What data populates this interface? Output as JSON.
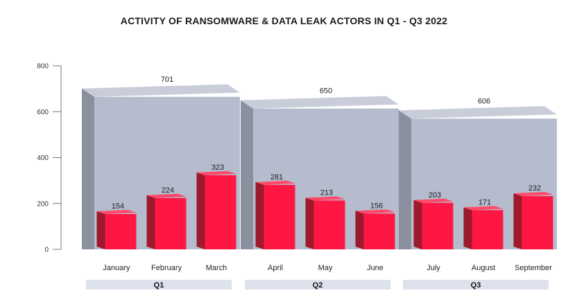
{
  "chart_data": {
    "type": "bar",
    "title": "ACTIVITY OF RANSOMWARE & DATA LEAK ACTORS IN Q1 - Q3 2022",
    "xlabel": "",
    "ylabel": "",
    "ylim": [
      0,
      800
    ],
    "yticks": [
      0,
      200,
      400,
      600,
      800
    ],
    "grid": false,
    "legend": "none",
    "style": "3d",
    "colors": {
      "month": "#ff1744",
      "quarter": "#b5bccd",
      "quarter_label_band": "#dde2ec"
    },
    "quarters": [
      {
        "name": "Q1",
        "total": 701,
        "months": [
          "January",
          "February",
          "March"
        ],
        "values": [
          154,
          224,
          323
        ]
      },
      {
        "name": "Q2",
        "total": 650,
        "months": [
          "April",
          "May",
          "June"
        ],
        "values": [
          281,
          213,
          156
        ]
      },
      {
        "name": "Q3",
        "total": 606,
        "months": [
          "July",
          "August",
          "September"
        ],
        "values": [
          203,
          171,
          232
        ]
      }
    ]
  }
}
